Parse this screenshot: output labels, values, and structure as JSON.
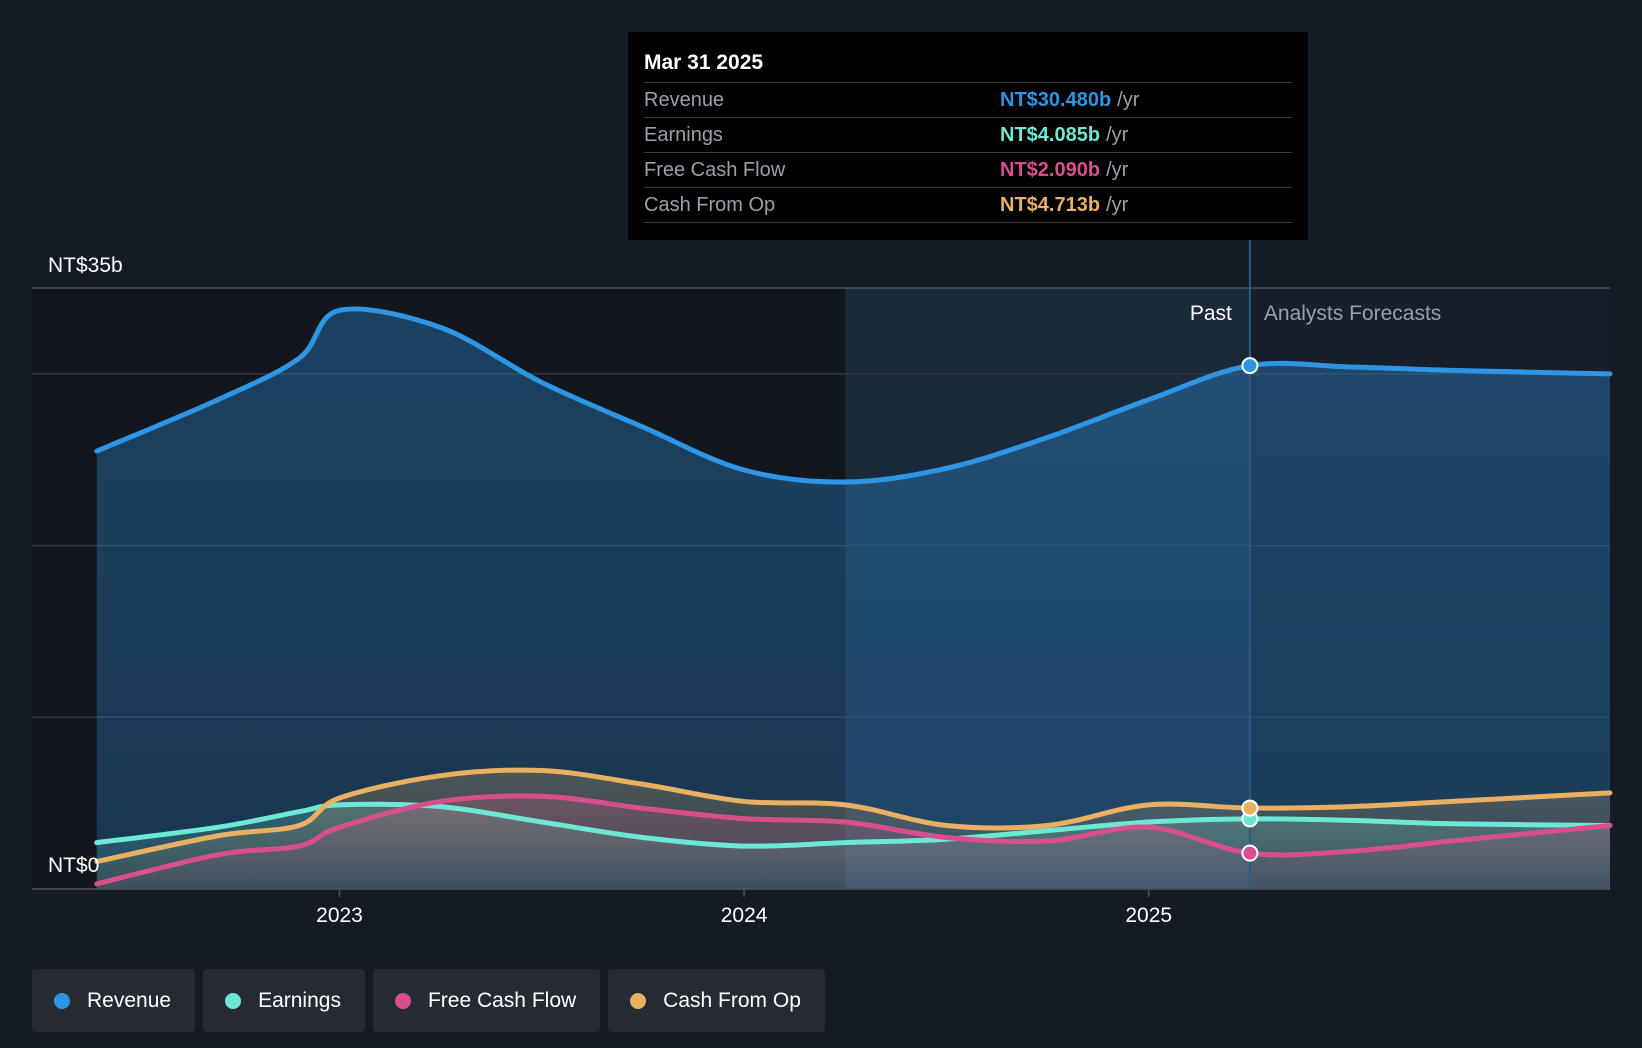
{
  "chart_data": {
    "type": "area",
    "y_axis": {
      "top_label": "NT$35b",
      "bottom_label": "NT$0",
      "ylim": [
        0,
        35
      ],
      "gridlines": [
        0,
        10,
        20,
        30,
        35
      ]
    },
    "x_axis": {
      "ticks": [
        {
          "label": "2023",
          "value": 2023.0
        },
        {
          "label": "2024",
          "value": 2024.0
        },
        {
          "label": "2025",
          "value": 2025.0
        }
      ],
      "xlim": [
        2022.24,
        2026.14
      ]
    },
    "regions": {
      "highlight_start": 2024.25,
      "past_end": 2025.25,
      "past_label": "Past",
      "forecast_label": "Analysts Forecasts"
    },
    "series": [
      {
        "name": "Revenue",
        "color": "#2d95e3",
        "points": [
          [
            2022.4,
            25.5
          ],
          [
            2022.7,
            28.5
          ],
          [
            2022.9,
            30.9
          ],
          [
            2023.0,
            33.7
          ],
          [
            2023.25,
            32.7
          ],
          [
            2023.5,
            29.5
          ],
          [
            2023.75,
            26.9
          ],
          [
            2024.0,
            24.4
          ],
          [
            2024.25,
            23.7
          ],
          [
            2024.5,
            24.5
          ],
          [
            2024.75,
            26.3
          ],
          [
            2025.0,
            28.5
          ],
          [
            2025.25,
            30.48
          ],
          [
            2025.5,
            30.4
          ],
          [
            2025.75,
            30.2
          ],
          [
            2026.14,
            30.0
          ]
        ]
      },
      {
        "name": "Earnings",
        "color": "#6ee8d6",
        "points": [
          [
            2022.4,
            2.7
          ],
          [
            2022.7,
            3.6
          ],
          [
            2022.9,
            4.5
          ],
          [
            2023.0,
            4.9
          ],
          [
            2023.25,
            4.8
          ],
          [
            2023.5,
            3.9
          ],
          [
            2023.75,
            3.0
          ],
          [
            2024.0,
            2.5
          ],
          [
            2024.25,
            2.7
          ],
          [
            2024.5,
            2.9
          ],
          [
            2024.75,
            3.4
          ],
          [
            2025.0,
            3.9
          ],
          [
            2025.25,
            4.085
          ],
          [
            2025.5,
            4.0
          ],
          [
            2025.75,
            3.8
          ],
          [
            2026.14,
            3.7
          ]
        ]
      },
      {
        "name": "Free Cash Flow",
        "color": "#d84f8c",
        "points": [
          [
            2022.4,
            0.3
          ],
          [
            2022.7,
            2.0
          ],
          [
            2022.9,
            2.5
          ],
          [
            2023.0,
            3.6
          ],
          [
            2023.25,
            5.1
          ],
          [
            2023.5,
            5.4
          ],
          [
            2023.75,
            4.7
          ],
          [
            2024.0,
            4.1
          ],
          [
            2024.25,
            3.9
          ],
          [
            2024.5,
            3.0
          ],
          [
            2024.75,
            2.8
          ],
          [
            2025.0,
            3.6
          ],
          [
            2025.25,
            2.09
          ],
          [
            2025.5,
            2.2
          ],
          [
            2025.75,
            2.8
          ],
          [
            2026.14,
            3.7
          ]
        ]
      },
      {
        "name": "Cash From Op",
        "color": "#eab061",
        "points": [
          [
            2022.4,
            1.6
          ],
          [
            2022.7,
            3.1
          ],
          [
            2022.9,
            3.7
          ],
          [
            2023.0,
            5.3
          ],
          [
            2023.25,
            6.6
          ],
          [
            2023.5,
            6.9
          ],
          [
            2023.75,
            6.1
          ],
          [
            2024.0,
            5.1
          ],
          [
            2024.25,
            4.9
          ],
          [
            2024.5,
            3.7
          ],
          [
            2024.75,
            3.7
          ],
          [
            2025.0,
            4.9
          ],
          [
            2025.25,
            4.713
          ],
          [
            2025.5,
            4.8
          ],
          [
            2025.75,
            5.1
          ],
          [
            2026.14,
            5.6
          ]
        ]
      }
    ]
  },
  "tooltip": {
    "date": "Mar 31 2025",
    "unit": "/yr",
    "rows": [
      {
        "label": "Revenue",
        "value": "NT$30.480b",
        "color": "#2d95e3"
      },
      {
        "label": "Earnings",
        "value": "NT$4.085b",
        "color": "#6ee8d6"
      },
      {
        "label": "Free Cash Flow",
        "value": "NT$2.090b",
        "color": "#d84f8c"
      },
      {
        "label": "Cash From Op",
        "value": "NT$4.713b",
        "color": "#eab061"
      }
    ]
  },
  "legend": [
    {
      "label": "Revenue",
      "color": "#2d95e3"
    },
    {
      "label": "Earnings",
      "color": "#6ee8d6"
    },
    {
      "label": "Free Cash Flow",
      "color": "#d84f8c"
    },
    {
      "label": "Cash From Op",
      "color": "#eab061"
    }
  ]
}
